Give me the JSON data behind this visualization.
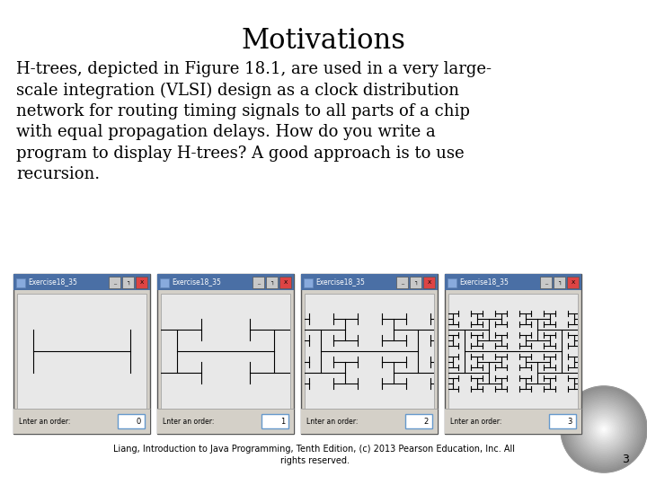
{
  "title": "Motivations",
  "title_fontsize": 22,
  "title_font": "serif",
  "body_text": "H-trees, depicted in Figure 18.1, are used in a very large-\nscale integration (VLSI) design as a clock distribution\nnetwork for routing timing signals to all parts of a chip\nwith equal propagation delays. How do you write a\nprogram to display H-trees? A good approach is to use\nrecursion.",
  "body_fontsize": 13,
  "body_font": "serif",
  "footer_text": "Liang, Introduction to Java Programming, Tenth Edition, (c) 2013 Pearson Education, Inc. All\nrights reserved.",
  "footer_fontsize": 7,
  "page_number": "3",
  "background_color": "#ffffff",
  "text_color": "#000000",
  "window_title": "Exercise18_35",
  "window_label": "Lnter an order:",
  "window_orders": [
    "0",
    "1",
    "2",
    "3"
  ],
  "window_bg": "#d4d0c8",
  "window_canvas_bg": "#e8e8e8",
  "window_title_bg": "#4a6fa5",
  "window_border": "#888888",
  "globe_gray_outer": "#aaaaaa",
  "globe_gray_inner": "#ffffff"
}
